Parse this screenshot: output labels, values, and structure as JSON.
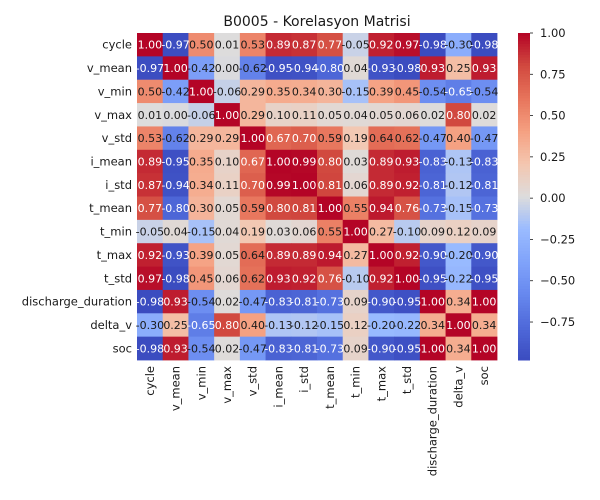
{
  "chart_data": {
    "type": "heatmap",
    "title": "B0005 - Korelasyon Matrisi",
    "variables": [
      "cycle",
      "v_mean",
      "v_min",
      "v_max",
      "v_std",
      "i_mean",
      "i_std",
      "t_mean",
      "t_min",
      "t_max",
      "t_std",
      "discharge_duration",
      "delta_v",
      "soc"
    ],
    "values": [
      [
        1.0,
        -0.97,
        0.5,
        0.01,
        0.53,
        0.89,
        0.87,
        0.77,
        -0.05,
        0.92,
        0.97,
        -0.98,
        -0.3,
        -0.98
      ],
      [
        -0.97,
        1.0,
        -0.42,
        0.0,
        -0.62,
        -0.95,
        -0.94,
        -0.8,
        0.04,
        -0.93,
        -0.98,
        0.93,
        0.25,
        0.93
      ],
      [
        0.5,
        -0.42,
        1.0,
        -0.06,
        0.29,
        0.35,
        0.34,
        0.3,
        -0.15,
        0.39,
        0.45,
        -0.54,
        -0.65,
        -0.54
      ],
      [
        0.01,
        0.0,
        -0.06,
        1.0,
        0.29,
        0.1,
        0.11,
        0.05,
        0.04,
        0.05,
        0.06,
        0.02,
        0.8,
        0.02
      ],
      [
        0.53,
        -0.62,
        0.29,
        0.29,
        1.0,
        0.67,
        0.7,
        0.59,
        0.19,
        0.64,
        0.62,
        -0.47,
        0.4,
        -0.47
      ],
      [
        0.89,
        -0.95,
        0.35,
        0.1,
        0.67,
        1.0,
        0.99,
        0.8,
        0.03,
        0.89,
        0.93,
        -0.83,
        -0.13,
        -0.83
      ],
      [
        0.87,
        -0.94,
        0.34,
        0.11,
        0.7,
        0.99,
        1.0,
        0.81,
        0.06,
        0.89,
        0.92,
        -0.81,
        -0.12,
        -0.81
      ],
      [
        0.77,
        -0.8,
        0.3,
        0.05,
        0.59,
        0.8,
        0.81,
        1.0,
        0.55,
        0.94,
        0.76,
        -0.73,
        -0.15,
        -0.73
      ],
      [
        -0.05,
        0.04,
        -0.15,
        0.04,
        0.19,
        0.03,
        0.06,
        0.55,
        1.0,
        0.27,
        -0.1,
        0.09,
        0.12,
        0.09
      ],
      [
        0.92,
        -0.93,
        0.39,
        0.05,
        0.64,
        0.89,
        0.89,
        0.94,
        0.27,
        1.0,
        0.92,
        -0.9,
        -0.2,
        -0.9
      ],
      [
        0.97,
        -0.98,
        0.45,
        0.06,
        0.62,
        0.93,
        0.92,
        0.76,
        -0.1,
        0.92,
        1.0,
        -0.95,
        -0.22,
        -0.95
      ],
      [
        -0.98,
        0.93,
        -0.54,
        0.02,
        -0.47,
        -0.83,
        -0.81,
        -0.73,
        0.09,
        -0.9,
        -0.95,
        1.0,
        0.34,
        1.0
      ],
      [
        -0.3,
        0.25,
        -0.65,
        0.8,
        0.4,
        -0.13,
        -0.12,
        -0.15,
        0.12,
        -0.2,
        -0.22,
        0.34,
        1.0,
        0.34
      ],
      [
        -0.98,
        0.93,
        -0.54,
        0.02,
        -0.47,
        -0.83,
        -0.81,
        -0.73,
        0.09,
        -0.9,
        -0.95,
        1.0,
        0.34,
        1.0
      ]
    ],
    "value_format": "2 decimals",
    "vmin": -0.98,
    "vmax": 1.0,
    "colormap": "coolwarm",
    "colorbar_ticks": [
      1.0,
      0.75,
      0.5,
      0.25,
      0.0,
      -0.25,
      -0.5,
      -0.75
    ],
    "colorbar_tick_labels": [
      "1.00",
      "0.75",
      "0.50",
      "0.25",
      "0.00",
      "−0.25",
      "−0.50",
      "−0.75"
    ],
    "colors": {
      "low": "#3b4cc0",
      "mid": "#dddcdc",
      "high": "#b40426"
    }
  }
}
